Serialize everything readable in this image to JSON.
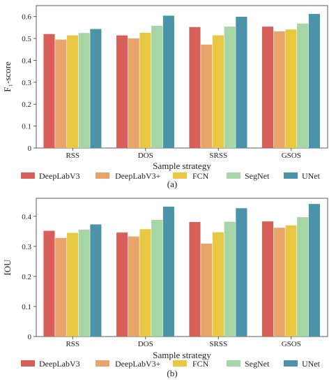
{
  "chart_data": [
    {
      "type": "bar",
      "caption": "(a)",
      "categories": [
        "RSS",
        "DOS",
        "SRSS",
        "GSOS"
      ],
      "xlabel": "Sample strategy",
      "ylabel": "F₁-score",
      "ylim": [
        0,
        0.65
      ],
      "yticks": [
        0.0,
        0.1,
        0.2,
        0.3,
        0.4,
        0.5,
        0.6
      ],
      "grid": false,
      "legend_position": "below",
      "series": [
        {
          "name": "DeepLabV3",
          "color": "#d95f5b",
          "values": [
            0.52,
            0.514,
            0.552,
            0.554
          ]
        },
        {
          "name": "DeepLabV3+",
          "color": "#e9a46a",
          "values": [
            0.495,
            0.5,
            0.472,
            0.532
          ]
        },
        {
          "name": "FCN",
          "color": "#e8c843",
          "values": [
            0.514,
            0.526,
            0.514,
            0.541
          ]
        },
        {
          "name": "SegNet",
          "color": "#a6d6a6",
          "values": [
            0.525,
            0.558,
            0.554,
            0.568
          ]
        },
        {
          "name": "UNet",
          "color": "#4a93a8",
          "values": [
            0.543,
            0.604,
            0.599,
            0.612
          ]
        }
      ]
    },
    {
      "type": "bar",
      "caption": "(b)",
      "categories": [
        "RSS",
        "DOS",
        "SRSS",
        "GSOS"
      ],
      "xlabel": "Sample strategy",
      "ylabel": "IOU",
      "ylim": [
        0,
        0.46
      ],
      "yticks": [
        0.0,
        0.1,
        0.2,
        0.3,
        0.4
      ],
      "grid": false,
      "legend_position": "below",
      "series": [
        {
          "name": "DeepLabV3",
          "color": "#d95f5b",
          "values": [
            0.352,
            0.346,
            0.381,
            0.383
          ]
        },
        {
          "name": "DeepLabV3+",
          "color": "#e9a46a",
          "values": [
            0.328,
            0.333,
            0.309,
            0.362
          ]
        },
        {
          "name": "FCN",
          "color": "#e8c843",
          "values": [
            0.345,
            0.357,
            0.347,
            0.37
          ]
        },
        {
          "name": "SegNet",
          "color": "#a6d6a6",
          "values": [
            0.356,
            0.388,
            0.382,
            0.397
          ]
        },
        {
          "name": "UNet",
          "color": "#4a93a8",
          "values": [
            0.373,
            0.432,
            0.427,
            0.441
          ]
        }
      ]
    }
  ]
}
